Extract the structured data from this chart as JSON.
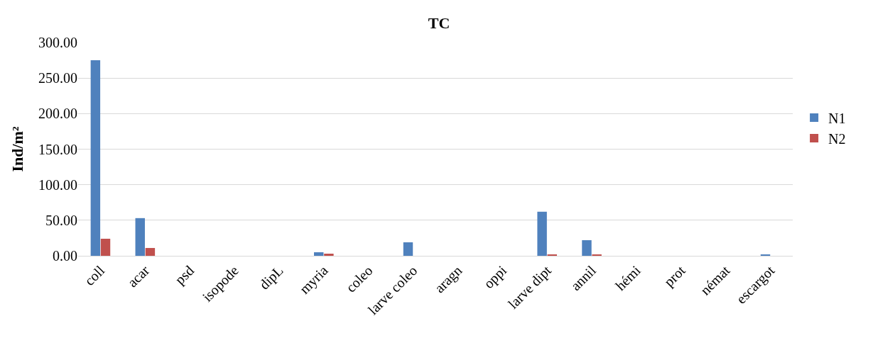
{
  "chart_data": {
    "type": "bar",
    "title": "TC",
    "ylabel": "Ind/m²",
    "categories": [
      "coll",
      "acar",
      "psd",
      "isopode",
      "dipL",
      "myria",
      "coleo",
      "larve coleo",
      "aragn",
      "oppi",
      "larve dipt",
      "annil",
      "hémi",
      "prot",
      "némat",
      "escargot"
    ],
    "series": [
      {
        "name": "N1",
        "color": "#4f81bd",
        "values": [
          275,
          53,
          0,
          0,
          0,
          5,
          0,
          19,
          0,
          0,
          62,
          22,
          0,
          0,
          0,
          2
        ]
      },
      {
        "name": "N2",
        "color": "#c0504d",
        "values": [
          24,
          11,
          0,
          0,
          0,
          3,
          0,
          0,
          0,
          0,
          2,
          2,
          0,
          0,
          0,
          0
        ]
      }
    ],
    "ylim": [
      0,
      300
    ],
    "yticks": [
      {
        "value": 0,
        "label": "0.00"
      },
      {
        "value": 50,
        "label": "50.00"
      },
      {
        "value": 100,
        "label": "100.00"
      },
      {
        "value": 150,
        "label": "150.00"
      },
      {
        "value": 200,
        "label": "200.00"
      },
      {
        "value": 250,
        "label": "250.00"
      },
      {
        "value": 300,
        "label": "300.00"
      }
    ],
    "grid": "y",
    "legend": "right"
  }
}
